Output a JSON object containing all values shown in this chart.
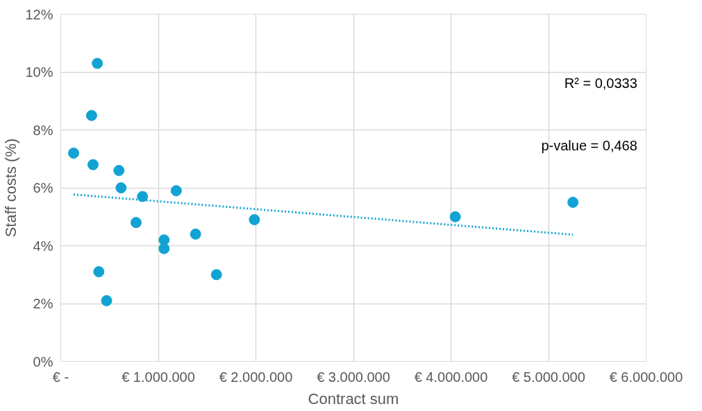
{
  "chart_data": {
    "type": "scatter",
    "xlabel": "Contract sum",
    "ylabel": "Staff costs (%)",
    "xlim": [
      0,
      6000000
    ],
    "xticks": [
      {
        "value": 0,
        "label": "€ -"
      },
      {
        "value": 1000000,
        "label": "€ 1.000.000"
      },
      {
        "value": 2000000,
        "label": "€ 2.000.000"
      },
      {
        "value": 3000000,
        "label": "€ 3.000.000"
      },
      {
        "value": 4000000,
        "label": "€ 4.000.000"
      },
      {
        "value": 5000000,
        "label": "€ 5.000.000"
      },
      {
        "value": 6000000,
        "label": "€ 6.000.000"
      }
    ],
    "ylim": [
      0,
      12
    ],
    "yticks": [
      {
        "value": 0,
        "label": "0%"
      },
      {
        "value": 2,
        "label": "2%"
      },
      {
        "value": 4,
        "label": "4%"
      },
      {
        "value": 6,
        "label": "6%"
      },
      {
        "value": 8,
        "label": "8%"
      },
      {
        "value": 10,
        "label": "10%"
      },
      {
        "value": 12,
        "label": "12%"
      }
    ],
    "grid": true,
    "series": [
      {
        "marker": "circle",
        "color": "#12a3d3",
        "x": [
          132000,
          316000,
          331000,
          375000,
          390000,
          470000,
          596000,
          618000,
          772000,
          838000,
          1059000,
          1059000,
          1184000,
          1382000,
          1596000,
          1985000,
          4044000,
          5250000
        ],
        "values": [
          7.2,
          8.5,
          6.8,
          10.3,
          3.1,
          2.1,
          6.6,
          6.0,
          4.8,
          5.7,
          4.2,
          3.9,
          5.9,
          4.4,
          3.0,
          4.9,
          5.0,
          5.5
        ]
      },
      {
        "type": "line",
        "color": "#12a3d3",
        "line_style": "dotted",
        "x": [
          132000,
          5250000
        ],
        "values": [
          5.77,
          4.38
        ]
      }
    ],
    "annotations": [
      "R² = 0,0333",
      "p-value = 0,468"
    ]
  }
}
